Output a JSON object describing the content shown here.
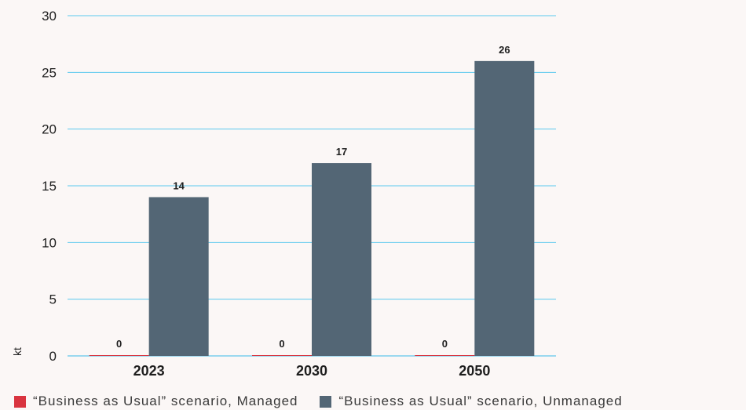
{
  "chart_data": {
    "type": "bar",
    "categories": [
      "2023",
      "2030",
      "2050"
    ],
    "series": [
      {
        "name": "“Business as Usual” scenario, Managed",
        "values": [
          0,
          0,
          0
        ],
        "color": "#d9343f"
      },
      {
        "name": "“Business as Usual” scenario, Unmanaged",
        "values": [
          14,
          17,
          26
        ],
        "color": "#536675"
      }
    ],
    "ylabel": "kt",
    "ylim": [
      0,
      30
    ],
    "yticks": [
      0,
      5,
      10,
      15,
      20,
      25,
      30
    ],
    "grid": true,
    "gridline_color": "#5bc8ee",
    "legend_position": "bottom"
  }
}
